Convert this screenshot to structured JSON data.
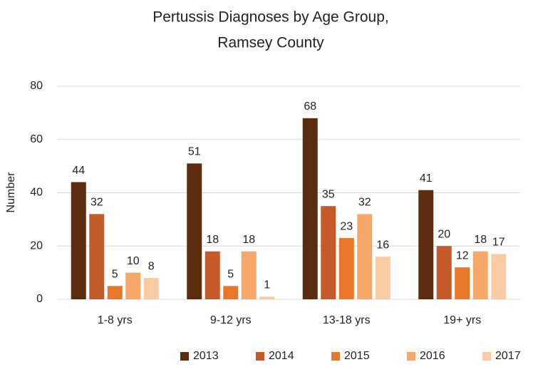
{
  "chart_data": {
    "type": "bar",
    "title": [
      "Pertussis Diagnoses by Age Group,",
      "Ramsey County"
    ],
    "y_label": "Number",
    "categories": [
      "1-8 yrs",
      "9-12 yrs",
      "13-18 yrs",
      "19+ yrs"
    ],
    "series": [
      {
        "name": "2013",
        "color": "#5b2c0e",
        "values": [
          44,
          51,
          68,
          41
        ]
      },
      {
        "name": "2014",
        "color": "#c55a2b",
        "values": [
          32,
          18,
          35,
          20
        ]
      },
      {
        "name": "2015",
        "color": "#e9772a",
        "values": [
          5,
          5,
          23,
          12
        ]
      },
      {
        "name": "2016",
        "color": "#f5a86a",
        "values": [
          10,
          18,
          32,
          18
        ]
      },
      {
        "name": "2017",
        "color": "#f9cba2",
        "values": [
          8,
          1,
          16,
          17
        ]
      }
    ],
    "ylim": [
      0,
      80
    ],
    "yticks": [
      0,
      20,
      40,
      60,
      80
    ],
    "grid": true,
    "legend": "bottom"
  }
}
